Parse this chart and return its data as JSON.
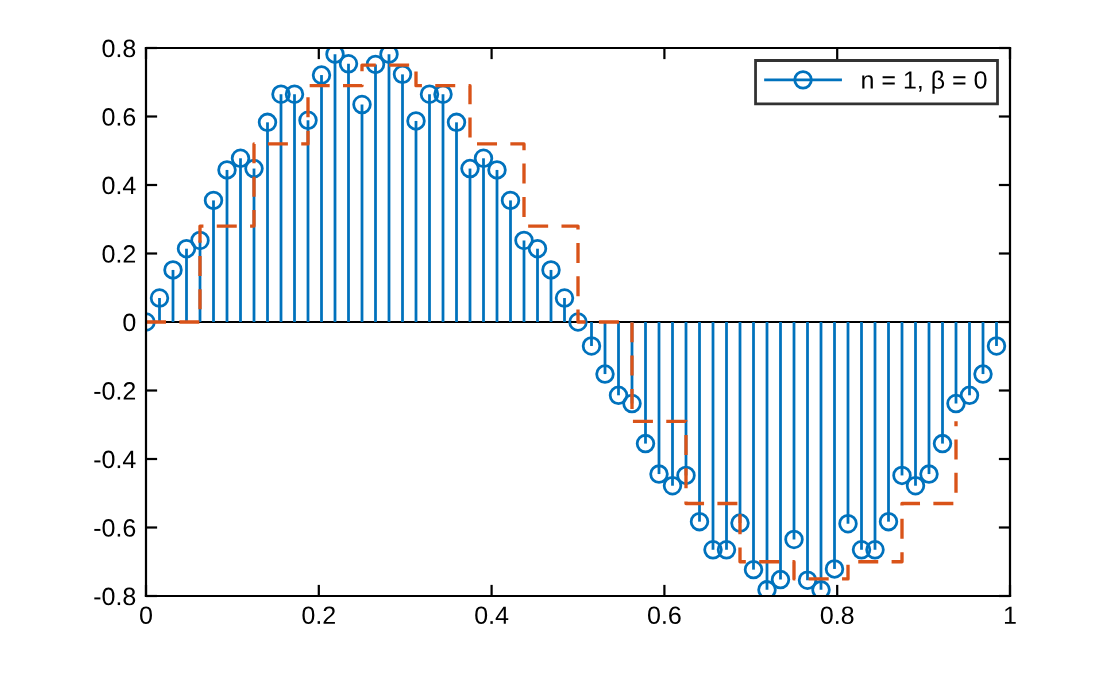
{
  "chart_data": {
    "type": "lollipop",
    "xlim": [
      0,
      1
    ],
    "ylim": [
      -0.8,
      0.8
    ],
    "xticks": [
      0,
      0.2,
      0.4,
      0.6,
      0.8,
      1
    ],
    "yticks": [
      -0.8,
      -0.6,
      -0.4,
      -0.2,
      0,
      0.2,
      0.4,
      0.6,
      0.8
    ],
    "legend": "top right",
    "grid": false,
    "marker": "circle",
    "ref_lines": [
      {
        "axis": "y",
        "value": 0,
        "color": "#000000"
      }
    ],
    "series": [
      {
        "name": "n = 1, β = 0",
        "color": "#0072bd",
        "x": [
          0,
          0.015625,
          0.03125,
          0.046875,
          0.0625,
          0.078125,
          0.09375,
          0.109375,
          0.125,
          0.140625,
          0.15625,
          0.171875,
          0.1875,
          0.203125,
          0.21875,
          0.234375,
          0.25,
          0.265625,
          0.28125,
          0.296875,
          0.3125,
          0.328125,
          0.34375,
          0.359375,
          0.375,
          0.390625,
          0.40625,
          0.421875,
          0.4375,
          0.453125,
          0.46875,
          0.484375,
          0.5,
          0.515625,
          0.53125,
          0.546875,
          0.5625,
          0.578125,
          0.59375,
          0.609375,
          0.625,
          0.640625,
          0.65625,
          0.671875,
          0.6875,
          0.703125,
          0.71875,
          0.734375,
          0.75,
          0.765625,
          0.78125,
          0.796875,
          0.8125,
          0.828125,
          0.84375,
          0.859375,
          0.875,
          0.890625,
          0.90625,
          0.921875,
          0.9375,
          0.953125,
          0.96875,
          0.984375
        ],
        "values": [
          0,
          0.07,
          0.152,
          0.214,
          0.238,
          0.355,
          0.444,
          0.478,
          0.448,
          0.583,
          0.665,
          0.665,
          0.589,
          0.721,
          0.782,
          0.754,
          0.635,
          0.752,
          0.782,
          0.723,
          0.587,
          0.665,
          0.665,
          0.583,
          0.448,
          0.478,
          0.444,
          0.355,
          0.238,
          0.214,
          0.152,
          0.07,
          0,
          -0.07,
          -0.152,
          -0.214,
          -0.238,
          -0.355,
          -0.444,
          -0.478,
          -0.448,
          -0.583,
          -0.665,
          -0.665,
          -0.587,
          -0.723,
          -0.782,
          -0.752,
          -0.635,
          -0.754,
          -0.782,
          -0.721,
          -0.589,
          -0.665,
          -0.665,
          -0.583,
          -0.448,
          -0.478,
          -0.444,
          -0.355,
          -0.238,
          -0.214,
          -0.152,
          -0.07
        ]
      },
      {
        "type": "step",
        "color": "#d95319",
        "line_style": "dashed",
        "marker": "none",
        "x": [
          0,
          0.0625,
          0.125,
          0.1875,
          0.25,
          0.3125,
          0.375,
          0.4375,
          0.5,
          0.5625,
          0.625,
          0.6875,
          0.75,
          0.8125,
          0.875,
          0.9375
        ],
        "values": [
          0,
          0.28,
          0.52,
          0.69,
          0.75,
          0.69,
          0.52,
          0.28,
          0,
          -0.29,
          -0.53,
          -0.7,
          -0.75,
          -0.7,
          -0.53,
          -0.29
        ]
      }
    ]
  }
}
